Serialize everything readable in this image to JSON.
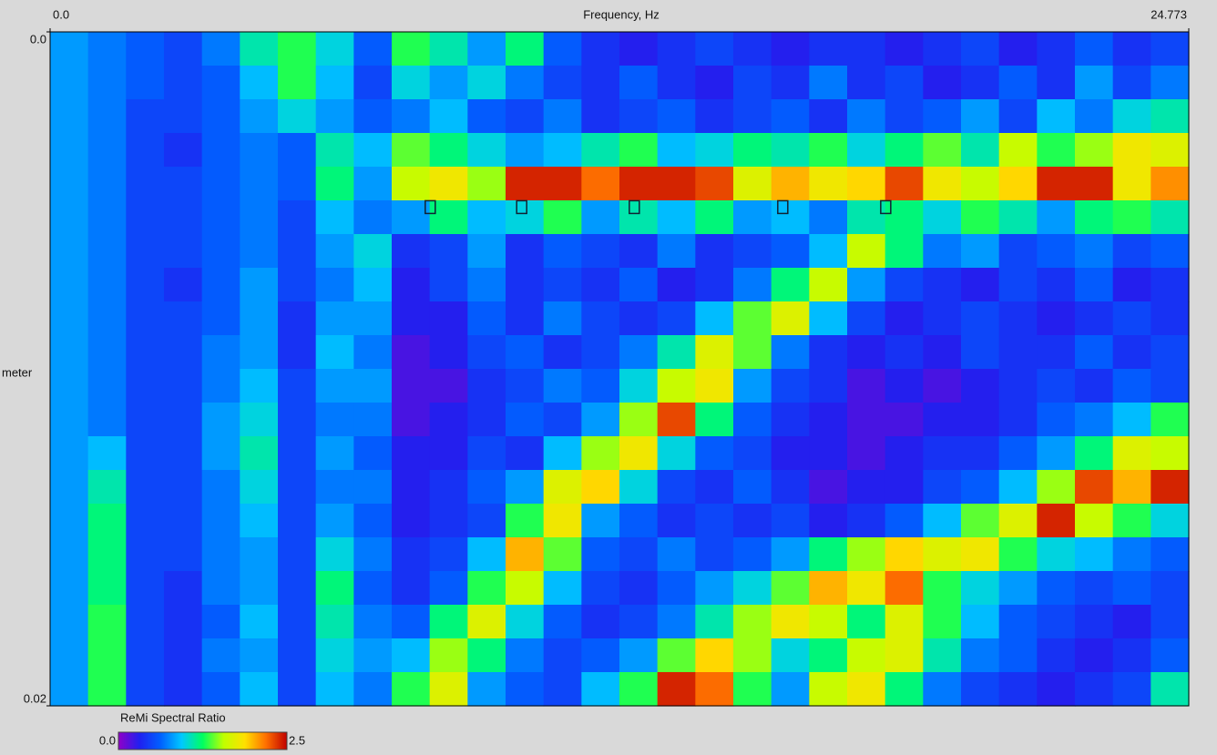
{
  "chart_data": {
    "type": "heatmap",
    "xlabel": "Frequency, Hz",
    "ylabel": "meter",
    "xlim": [
      0,
      24.773
    ],
    "xticks": [
      {
        "value": 0,
        "label": "0.0"
      },
      24.773
    ],
    "ylim": [
      0,
      0.02
    ],
    "yticks": [
      {
        "value": 0,
        "label": "0.0"
      },
      0.02
    ],
    "y_inverted": true,
    "zlim": [
      0,
      2.5
    ],
    "colorbar_title": "ReMi Spectral Ratio",
    "colorbar_ticks": [
      {
        "value": 0,
        "label": "0.0"
      },
      2.5
    ],
    "colormap": [
      "#9000c8",
      "#2020f0",
      "#0060ff",
      "#00c8ff",
      "#00ff60",
      "#c0ff00",
      "#ffe000",
      "#ff7000",
      "#c00000"
    ],
    "z": [
      [
        0.8,
        0.7,
        0.6,
        0.5,
        0.7,
        1.1,
        1.3,
        1.0,
        0.6,
        1.3,
        1.1,
        0.8,
        1.2,
        0.6,
        0.4,
        0.3,
        0.4,
        0.5,
        0.4,
        0.3,
        0.4,
        0.4,
        0.3,
        0.4,
        0.5,
        0.3,
        0.4,
        0.6,
        0.4,
        0.5
      ],
      [
        0.8,
        0.7,
        0.6,
        0.5,
        0.6,
        0.9,
        1.3,
        0.9,
        0.5,
        1.0,
        0.8,
        1.0,
        0.7,
        0.5,
        0.4,
        0.6,
        0.4,
        0.3,
        0.5,
        0.4,
        0.7,
        0.4,
        0.5,
        0.3,
        0.4,
        0.6,
        0.4,
        0.8,
        0.5,
        0.7
      ],
      [
        0.8,
        0.7,
        0.5,
        0.5,
        0.6,
        0.8,
        1.0,
        0.8,
        0.6,
        0.7,
        0.9,
        0.6,
        0.5,
        0.7,
        0.4,
        0.5,
        0.6,
        0.4,
        0.5,
        0.6,
        0.4,
        0.7,
        0.5,
        0.6,
        0.8,
        0.5,
        0.9,
        0.7,
        1.0,
        1.1
      ],
      [
        0.8,
        0.7,
        0.5,
        0.4,
        0.6,
        0.7,
        0.6,
        1.1,
        0.9,
        1.4,
        1.2,
        1.0,
        0.8,
        0.9,
        1.1,
        1.3,
        0.9,
        1.0,
        1.2,
        1.1,
        1.3,
        1.0,
        1.2,
        1.4,
        1.1,
        1.6,
        1.3,
        1.5,
        1.8,
        1.7
      ],
      [
        0.8,
        0.7,
        0.5,
        0.5,
        0.6,
        0.7,
        0.6,
        1.2,
        0.8,
        1.6,
        1.8,
        1.5,
        2.4,
        2.4,
        2.2,
        2.4,
        2.4,
        2.3,
        1.7,
        2.0,
        1.8,
        1.9,
        2.3,
        1.8,
        1.6,
        1.9,
        2.4,
        2.4,
        1.8,
        2.1
      ],
      [
        0.8,
        0.7,
        0.5,
        0.5,
        0.6,
        0.7,
        0.5,
        0.9,
        0.7,
        0.8,
        1.2,
        0.9,
        1.0,
        1.3,
        0.8,
        1.1,
        0.9,
        1.2,
        0.8,
        0.9,
        0.7,
        1.1,
        1.2,
        1.0,
        1.3,
        1.1,
        0.8,
        1.2,
        1.3,
        1.1
      ],
      [
        0.8,
        0.7,
        0.5,
        0.5,
        0.6,
        0.7,
        0.5,
        0.8,
        1.0,
        0.4,
        0.5,
        0.8,
        0.4,
        0.6,
        0.5,
        0.4,
        0.7,
        0.4,
        0.5,
        0.6,
        0.9,
        1.6,
        1.2,
        0.7,
        0.8,
        0.5,
        0.6,
        0.7,
        0.5,
        0.6
      ],
      [
        0.8,
        0.7,
        0.5,
        0.4,
        0.6,
        0.8,
        0.5,
        0.7,
        0.9,
        0.3,
        0.5,
        0.7,
        0.4,
        0.5,
        0.4,
        0.6,
        0.3,
        0.4,
        0.7,
        1.2,
        1.6,
        0.8,
        0.5,
        0.4,
        0.3,
        0.5,
        0.4,
        0.6,
        0.3,
        0.4
      ],
      [
        0.8,
        0.7,
        0.5,
        0.5,
        0.6,
        0.8,
        0.4,
        0.8,
        0.8,
        0.3,
        0.3,
        0.6,
        0.4,
        0.7,
        0.5,
        0.4,
        0.5,
        0.9,
        1.4,
        1.7,
        0.9,
        0.5,
        0.3,
        0.4,
        0.5,
        0.4,
        0.3,
        0.4,
        0.5,
        0.4
      ],
      [
        0.8,
        0.7,
        0.5,
        0.5,
        0.7,
        0.8,
        0.4,
        0.9,
        0.7,
        0.2,
        0.3,
        0.5,
        0.6,
        0.4,
        0.5,
        0.7,
        1.1,
        1.7,
        1.4,
        0.7,
        0.4,
        0.3,
        0.4,
        0.3,
        0.5,
        0.4,
        0.4,
        0.6,
        0.4,
        0.5
      ],
      [
        0.8,
        0.7,
        0.5,
        0.5,
        0.7,
        0.9,
        0.5,
        0.8,
        0.8,
        0.2,
        0.2,
        0.4,
        0.5,
        0.7,
        0.6,
        1.0,
        1.6,
        1.8,
        0.8,
        0.5,
        0.4,
        0.2,
        0.3,
        0.2,
        0.3,
        0.4,
        0.5,
        0.4,
        0.6,
        0.5
      ],
      [
        0.8,
        0.7,
        0.5,
        0.5,
        0.8,
        1.0,
        0.5,
        0.7,
        0.7,
        0.2,
        0.3,
        0.4,
        0.6,
        0.5,
        0.8,
        1.5,
        2.3,
        1.2,
        0.6,
        0.4,
        0.3,
        0.2,
        0.2,
        0.3,
        0.3,
        0.4,
        0.6,
        0.7,
        0.9,
        1.3
      ],
      [
        0.8,
        0.9,
        0.5,
        0.5,
        0.8,
        1.1,
        0.5,
        0.8,
        0.6,
        0.3,
        0.3,
        0.5,
        0.4,
        0.9,
        1.5,
        1.8,
        1.0,
        0.6,
        0.5,
        0.3,
        0.3,
        0.2,
        0.3,
        0.4,
        0.4,
        0.6,
        0.8,
        1.2,
        1.7,
        1.6
      ],
      [
        0.8,
        1.1,
        0.5,
        0.5,
        0.7,
        1.0,
        0.5,
        0.7,
        0.7,
        0.3,
        0.4,
        0.6,
        0.8,
        1.7,
        1.9,
        1.0,
        0.5,
        0.4,
        0.6,
        0.4,
        0.2,
        0.3,
        0.3,
        0.5,
        0.6,
        0.9,
        1.5,
        2.3,
        2.0,
        2.4
      ],
      [
        0.8,
        1.2,
        0.5,
        0.5,
        0.7,
        0.9,
        0.5,
        0.8,
        0.6,
        0.3,
        0.4,
        0.5,
        1.3,
        1.8,
        0.8,
        0.6,
        0.4,
        0.5,
        0.4,
        0.5,
        0.3,
        0.4,
        0.6,
        0.9,
        1.4,
        1.7,
        2.4,
        1.6,
        1.3,
        1.0
      ],
      [
        0.8,
        1.2,
        0.5,
        0.5,
        0.7,
        0.8,
        0.5,
        1.0,
        0.7,
        0.4,
        0.5,
        0.9,
        2.0,
        1.4,
        0.6,
        0.5,
        0.7,
        0.5,
        0.6,
        0.8,
        1.2,
        1.5,
        1.9,
        1.7,
        1.8,
        1.3,
        1.0,
        0.9,
        0.7,
        0.6
      ],
      [
        0.8,
        1.2,
        0.5,
        0.4,
        0.7,
        0.8,
        0.5,
        1.2,
        0.6,
        0.4,
        0.6,
        1.3,
        1.6,
        0.9,
        0.5,
        0.4,
        0.6,
        0.8,
        1.0,
        1.4,
        2.0,
        1.8,
        2.2,
        1.3,
        1.0,
        0.8,
        0.6,
        0.5,
        0.6,
        0.5
      ],
      [
        0.8,
        1.3,
        0.5,
        0.4,
        0.6,
        0.9,
        0.5,
        1.1,
        0.7,
        0.6,
        1.2,
        1.7,
        1.0,
        0.6,
        0.4,
        0.5,
        0.7,
        1.1,
        1.5,
        1.8,
        1.6,
        1.2,
        1.7,
        1.3,
        0.9,
        0.6,
        0.5,
        0.4,
        0.3,
        0.5
      ],
      [
        0.8,
        1.3,
        0.5,
        0.4,
        0.7,
        0.8,
        0.5,
        1.0,
        0.8,
        0.9,
        1.5,
        1.2,
        0.7,
        0.5,
        0.6,
        0.8,
        1.4,
        1.9,
        1.5,
        1.0,
        1.2,
        1.6,
        1.7,
        1.1,
        0.7,
        0.6,
        0.4,
        0.3,
        0.4,
        0.6
      ],
      [
        0.8,
        1.3,
        0.5,
        0.4,
        0.6,
        0.9,
        0.5,
        0.9,
        0.7,
        1.3,
        1.7,
        0.8,
        0.6,
        0.5,
        0.9,
        1.3,
        2.4,
        2.2,
        1.3,
        0.8,
        1.6,
        1.8,
        1.2,
        0.7,
        0.5,
        0.4,
        0.3,
        0.4,
        0.5,
        1.1
      ]
    ],
    "picks": {
      "x": [
        8.28,
        10.27,
        12.72,
        15.95,
        18.19
      ],
      "y": [
        0.0052,
        0.0052,
        0.0052,
        0.0052,
        0.0052
      ]
    }
  }
}
